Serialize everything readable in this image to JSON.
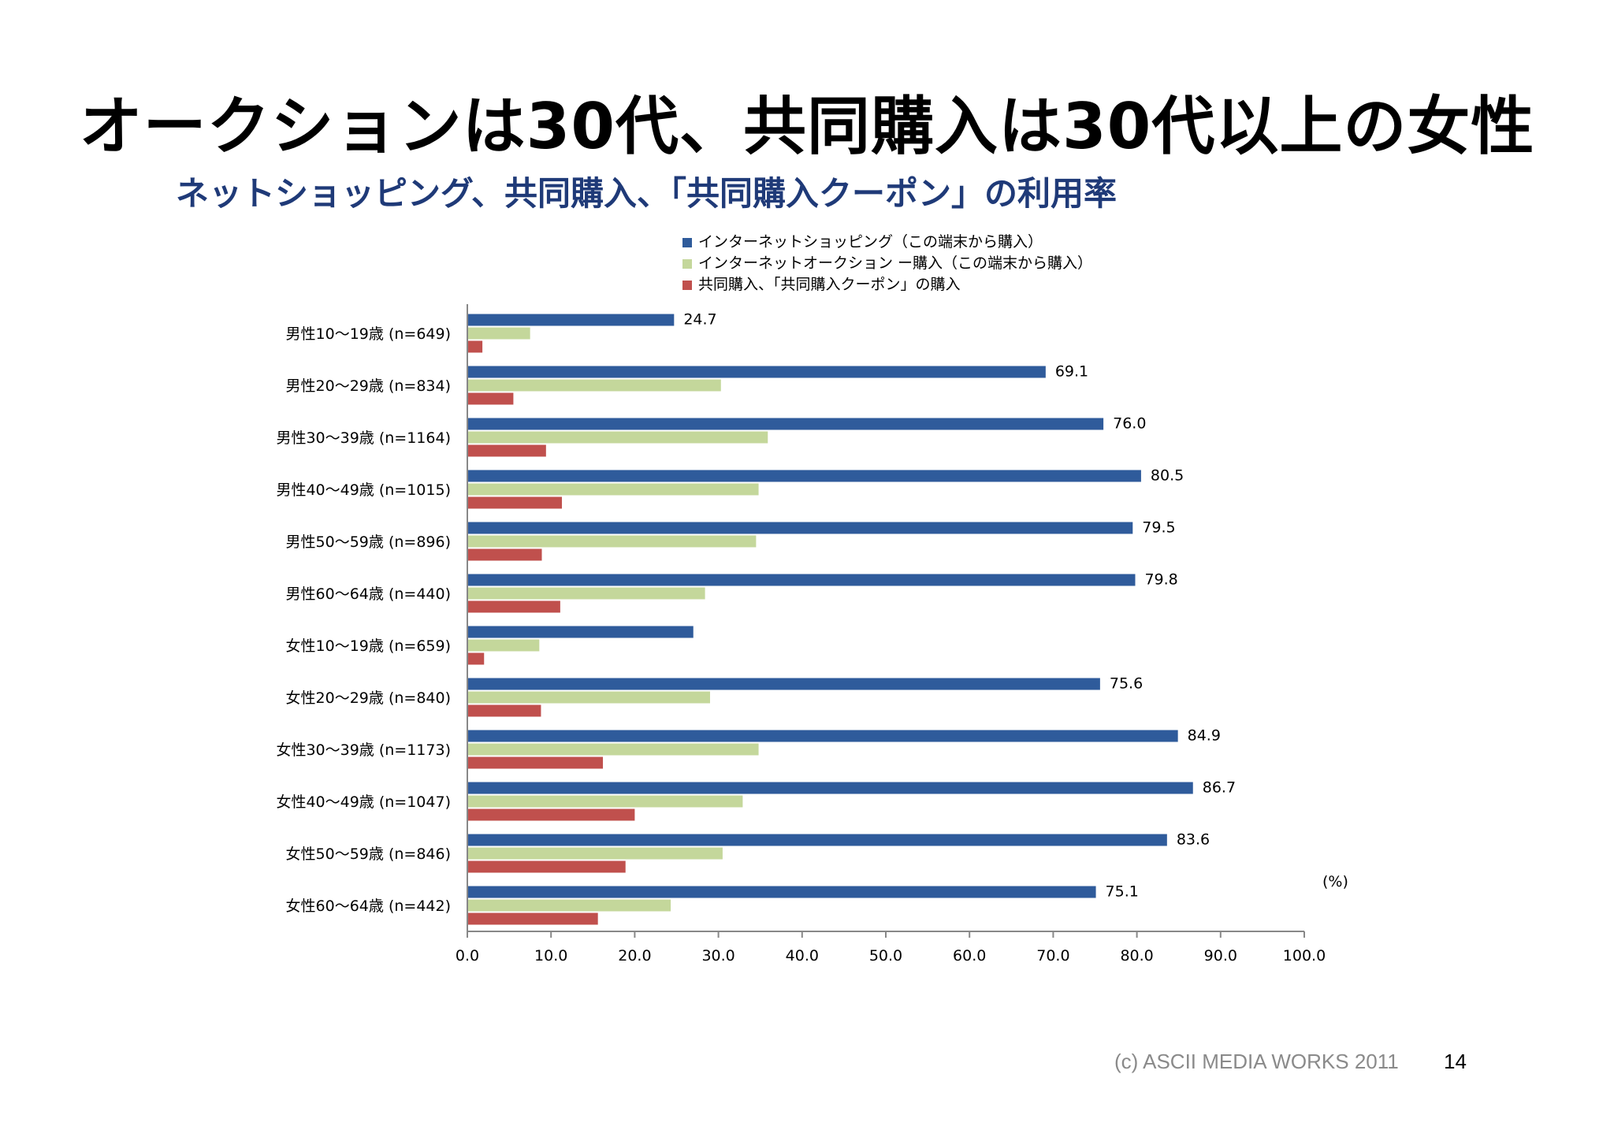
{
  "slide": {
    "title": "オークションは30代、共同購入は30代以上の女性"
  },
  "footer": {
    "copyright": "(c) ASCII MEDIA WORKS 2011",
    "page_number": "14"
  },
  "chart_data": {
    "type": "bar",
    "orientation": "horizontal",
    "title": "ネットショッピング、共同購入、「共同購入クーポン」の利用率",
    "unit_label": "(%)",
    "categories": [
      "男性10〜19歳 (n=649)",
      "男性20〜29歳 (n=834)",
      "男性30〜39歳 (n=1164)",
      "男性40〜49歳 (n=1015)",
      "男性50〜59歳 (n=896)",
      "男性60〜64歳 (n=440)",
      "女性10〜19歳 (n=659)",
      "女性20〜29歳 (n=840)",
      "女性30〜39歳 (n=1173)",
      "女性40〜49歳 (n=1047)",
      "女性50〜59歳 (n=846)",
      "女性60〜64歳 (n=442)"
    ],
    "series": [
      {
        "name": "インターネットショッピング（この端末から購入）",
        "color": "#2f5b9b",
        "values": [
          24.7,
          69.1,
          76.0,
          80.5,
          79.5,
          79.8,
          27.0,
          75.6,
          84.9,
          86.7,
          83.6,
          75.1
        ],
        "data_labels": [
          "24.7",
          "69.1",
          "76.0",
          "80.5",
          "79.5",
          "79.8",
          "",
          "75.6",
          "84.9",
          "86.7",
          "83.6",
          "75.1"
        ]
      },
      {
        "name": "インターネットオークション ー購入（この端末から購入）",
        "color": "#c4d79b",
        "values": [
          7.5,
          30.3,
          35.9,
          34.8,
          34.5,
          28.4,
          8.6,
          29.0,
          34.8,
          32.9,
          30.5,
          24.3
        ]
      },
      {
        "name": "共同購入、「共同購入クーポン」の購入",
        "color": "#c0504d",
        "values": [
          1.8,
          5.5,
          9.4,
          11.3,
          8.9,
          11.1,
          2.0,
          8.8,
          16.2,
          20.0,
          18.9,
          15.6
        ]
      }
    ],
    "x_ticks": [
      "0.0",
      "10.0",
      "20.0",
      "30.0",
      "40.0",
      "50.0",
      "60.0",
      "70.0",
      "80.0",
      "90.0",
      "100.0"
    ],
    "xlim": [
      0,
      100
    ],
    "grid": false,
    "legend_position": "top"
  }
}
